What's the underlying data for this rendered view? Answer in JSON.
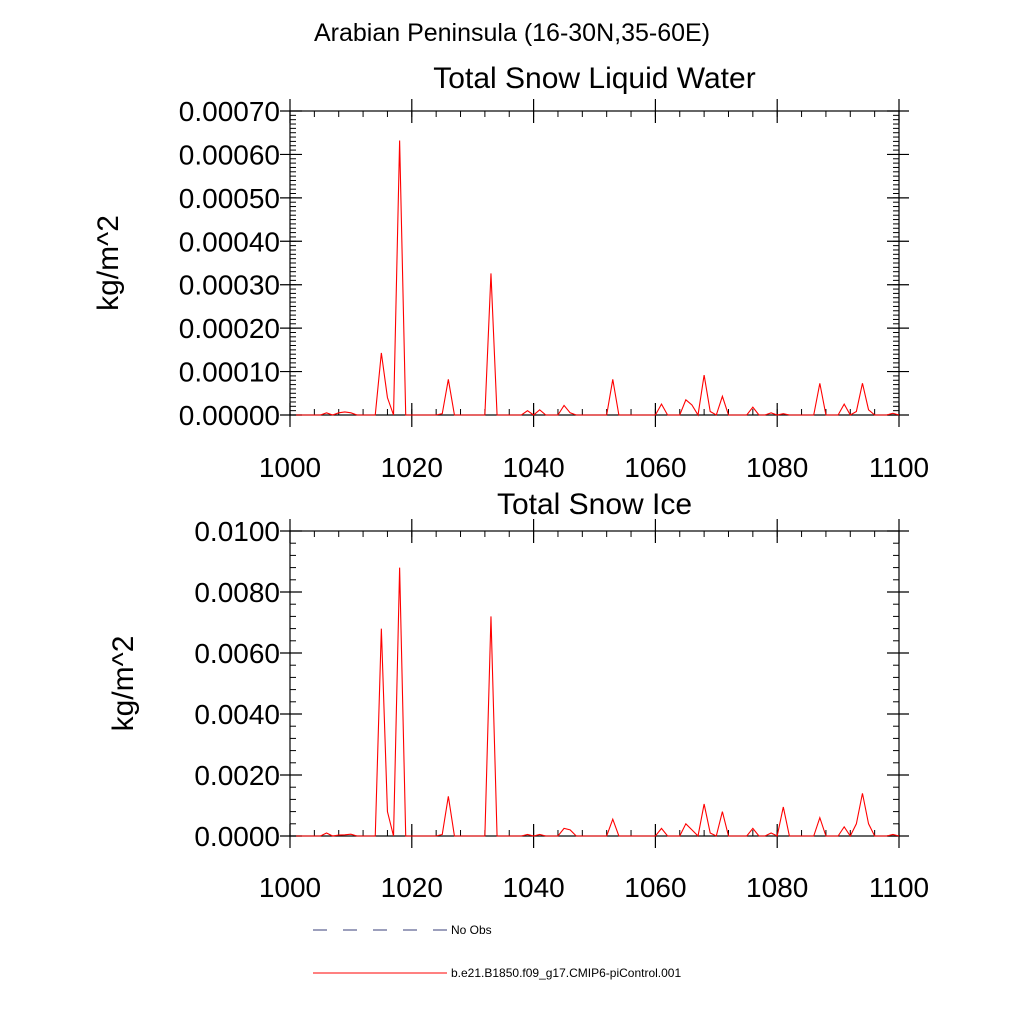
{
  "figure_title": "Arabian Peninsula (16-30N,35-60E)",
  "legend": {
    "entries": [
      {
        "label": "No Obs",
        "color": "#3a3f7a",
        "style": "dashed"
      },
      {
        "label": "b.e21.B1850.f09_g17.CMIP6-piControl.001",
        "color": "#ff0000",
        "style": "solid"
      }
    ]
  },
  "chart_data": [
    {
      "type": "line",
      "title": "Total Snow Liquid Water",
      "xlabel": "",
      "ylabel": "kg/m^2",
      "xlim": [
        1000,
        1100
      ],
      "ylim": [
        0,
        0.0007
      ],
      "xticks": [
        1000,
        1020,
        1040,
        1060,
        1080,
        1100
      ],
      "xtick_labels": [
        "1000",
        "1020",
        "1040",
        "1060",
        "1080",
        "1100"
      ],
      "yticks": [
        0,
        0.0001,
        0.0002,
        0.0003,
        0.0004,
        0.0005,
        0.0006,
        0.0007
      ],
      "ytick_labels": [
        "0.00000",
        "0.00010",
        "0.00020",
        "0.00030",
        "0.00040",
        "0.00050",
        "0.00060",
        "0.00070"
      ],
      "grid": false,
      "series": [
        {
          "name": "b.e21.B1850.f09_g17.CMIP6-piControl.001",
          "color": "#ff0000",
          "x": [
            1001,
            1002,
            1003,
            1004,
            1005,
            1006,
            1007,
            1008,
            1009,
            1010,
            1011,
            1012,
            1013,
            1014,
            1015,
            1016,
            1017,
            1018,
            1019,
            1020,
            1021,
            1022,
            1023,
            1024,
            1025,
            1026,
            1027,
            1028,
            1029,
            1030,
            1031,
            1032,
            1033,
            1034,
            1035,
            1036,
            1037,
            1038,
            1039,
            1040,
            1041,
            1042,
            1043,
            1044,
            1045,
            1046,
            1047,
            1048,
            1049,
            1050,
            1051,
            1052,
            1053,
            1054,
            1055,
            1056,
            1057,
            1058,
            1059,
            1060,
            1061,
            1062,
            1063,
            1064,
            1065,
            1066,
            1067,
            1068,
            1069,
            1070,
            1071,
            1072,
            1073,
            1074,
            1075,
            1076,
            1077,
            1078,
            1079,
            1080,
            1081,
            1082,
            1083,
            1084,
            1085,
            1086,
            1087,
            1088,
            1089,
            1090,
            1091,
            1092,
            1093,
            1094,
            1095,
            1096,
            1097,
            1098,
            1099,
            1100
          ],
          "y": [
            0,
            0,
            0,
            0,
            0,
            5e-06,
            0,
            5e-06,
            7e-06,
            5e-06,
            0,
            0,
            0,
            0,
            0.000143,
            4e-05,
            0,
            0.000632,
            0,
            0,
            0,
            0,
            0,
            0,
            3e-06,
            8.2e-05,
            0,
            0,
            0,
            0,
            0,
            0,
            0.000326,
            0,
            0,
            0,
            0,
            0,
            1e-05,
            0,
            1.2e-05,
            0,
            0,
            0,
            2.2e-05,
            5e-06,
            0,
            0,
            0,
            0,
            0,
            0,
            8.2e-05,
            0,
            0,
            0,
            0,
            0,
            0,
            0,
            2.5e-05,
            0,
            0,
            0,
            3.5e-05,
            2.3e-05,
            0,
            9.2e-05,
            8e-06,
            0,
            4.3e-05,
            0,
            0,
            0,
            0,
            1.8e-05,
            0,
            0,
            5e-06,
            0,
            3e-06,
            0,
            0,
            0,
            0,
            0,
            7.3e-05,
            0,
            0,
            0,
            2.5e-05,
            0,
            8e-06,
            7.3e-05,
            1.2e-05,
            0,
            0,
            0,
            4e-06,
            0
          ]
        }
      ]
    },
    {
      "type": "line",
      "title": "Total Snow Ice",
      "xlabel": "",
      "ylabel": "kg/m^2",
      "xlim": [
        1000,
        1100
      ],
      "ylim": [
        0,
        0.01
      ],
      "xticks": [
        1000,
        1020,
        1040,
        1060,
        1080,
        1100
      ],
      "xtick_labels": [
        "1000",
        "1020",
        "1040",
        "1060",
        "1080",
        "1100"
      ],
      "yticks": [
        0,
        0.002,
        0.004,
        0.006,
        0.008,
        0.01
      ],
      "ytick_labels": [
        "0.0000",
        "0.0020",
        "0.0040",
        "0.0060",
        "0.0080",
        "0.0100"
      ],
      "grid": false,
      "series": [
        {
          "name": "b.e21.B1850.f09_g17.CMIP6-piControl.001",
          "color": "#ff0000",
          "x": [
            1001,
            1002,
            1003,
            1004,
            1005,
            1006,
            1007,
            1008,
            1009,
            1010,
            1011,
            1012,
            1013,
            1014,
            1015,
            1016,
            1017,
            1018,
            1019,
            1020,
            1021,
            1022,
            1023,
            1024,
            1025,
            1026,
            1027,
            1028,
            1029,
            1030,
            1031,
            1032,
            1033,
            1034,
            1035,
            1036,
            1037,
            1038,
            1039,
            1040,
            1041,
            1042,
            1043,
            1044,
            1045,
            1046,
            1047,
            1048,
            1049,
            1050,
            1051,
            1052,
            1053,
            1054,
            1055,
            1056,
            1057,
            1058,
            1059,
            1060,
            1061,
            1062,
            1063,
            1064,
            1065,
            1066,
            1067,
            1068,
            1069,
            1070,
            1071,
            1072,
            1073,
            1074,
            1075,
            1076,
            1077,
            1078,
            1079,
            1080,
            1081,
            1082,
            1083,
            1084,
            1085,
            1086,
            1087,
            1088,
            1089,
            1090,
            1091,
            1092,
            1093,
            1094,
            1095,
            1096,
            1097,
            1098,
            1099,
            1100
          ],
          "y": [
            0,
            0,
            0,
            0,
            0,
            0.0001,
            0,
            3e-05,
            4e-05,
            6e-05,
            0,
            0,
            0,
            0,
            0.0068,
            0.0008,
            0,
            0.0088,
            0,
            0,
            0,
            0,
            0,
            0,
            5e-05,
            0.0013,
            0,
            0,
            0,
            0,
            0,
            0,
            0.0072,
            0,
            0,
            0,
            0,
            0,
            5e-05,
            0,
            5e-05,
            0,
            0,
            0,
            0.00025,
            0.0002,
            0,
            0,
            0,
            0,
            0,
            0,
            0.00055,
            0,
            0,
            0,
            0,
            0,
            0,
            0,
            0.00025,
            0,
            0,
            0,
            0.0004,
            0.0002,
            0,
            0.00105,
            0.0001,
            0,
            0.0008,
            0,
            0,
            0,
            0,
            0.00025,
            0,
            0,
            0.0001,
            0,
            0.00095,
            0,
            0,
            0,
            0,
            0,
            0.0006,
            0,
            0,
            0,
            0.0003,
            0,
            0.0004,
            0.0014,
            0.0004,
            0,
            0,
            0,
            5e-05,
            0
          ]
        }
      ]
    }
  ]
}
